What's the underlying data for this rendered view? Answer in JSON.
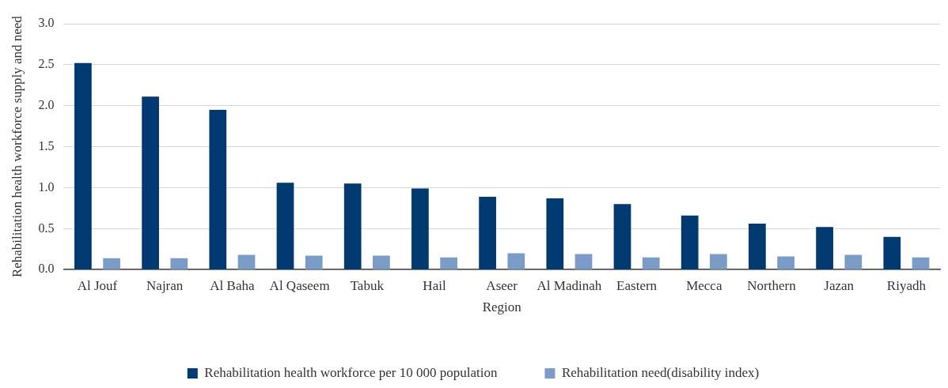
{
  "chart_data": {
    "type": "bar",
    "xlabel": "Region",
    "ylabel": "Rehabilitation health workforce supply and need",
    "categories": [
      "Al Jouf",
      "Najran",
      "Al Baha",
      "Al Qaseem",
      "Tabuk",
      "Hail",
      "Aseer",
      "Al Madinah",
      "Eastern",
      "Mecca",
      "Northern",
      "Jazan",
      "Riyadh"
    ],
    "series": [
      {
        "name": "Rehabilitation health workforce per 10 000 population",
        "color": "#003a70",
        "values": [
          2.52,
          2.11,
          1.95,
          1.06,
          1.05,
          0.99,
          0.89,
          0.87,
          0.8,
          0.66,
          0.56,
          0.52,
          0.4
        ]
      },
      {
        "name": "Rehabilitation need(disability index)",
        "color": "#7a9cc6",
        "values": [
          0.14,
          0.14,
          0.18,
          0.17,
          0.17,
          0.15,
          0.2,
          0.19,
          0.15,
          0.19,
          0.16,
          0.18,
          0.15
        ]
      }
    ],
    "ylim": [
      0,
      3
    ],
    "yticks": [
      {
        "value": 0,
        "label": "0.0"
      },
      {
        "value": 0.5,
        "label": "0.5"
      },
      {
        "value": 1,
        "label": "1.0"
      },
      {
        "value": 1.5,
        "label": "1.5"
      },
      {
        "value": 2,
        "label": "2.0"
      },
      {
        "value": 2.5,
        "label": "2.5"
      },
      {
        "value": 3,
        "label": "3.0"
      }
    ],
    "grid": "y",
    "legend": "bottom"
  }
}
